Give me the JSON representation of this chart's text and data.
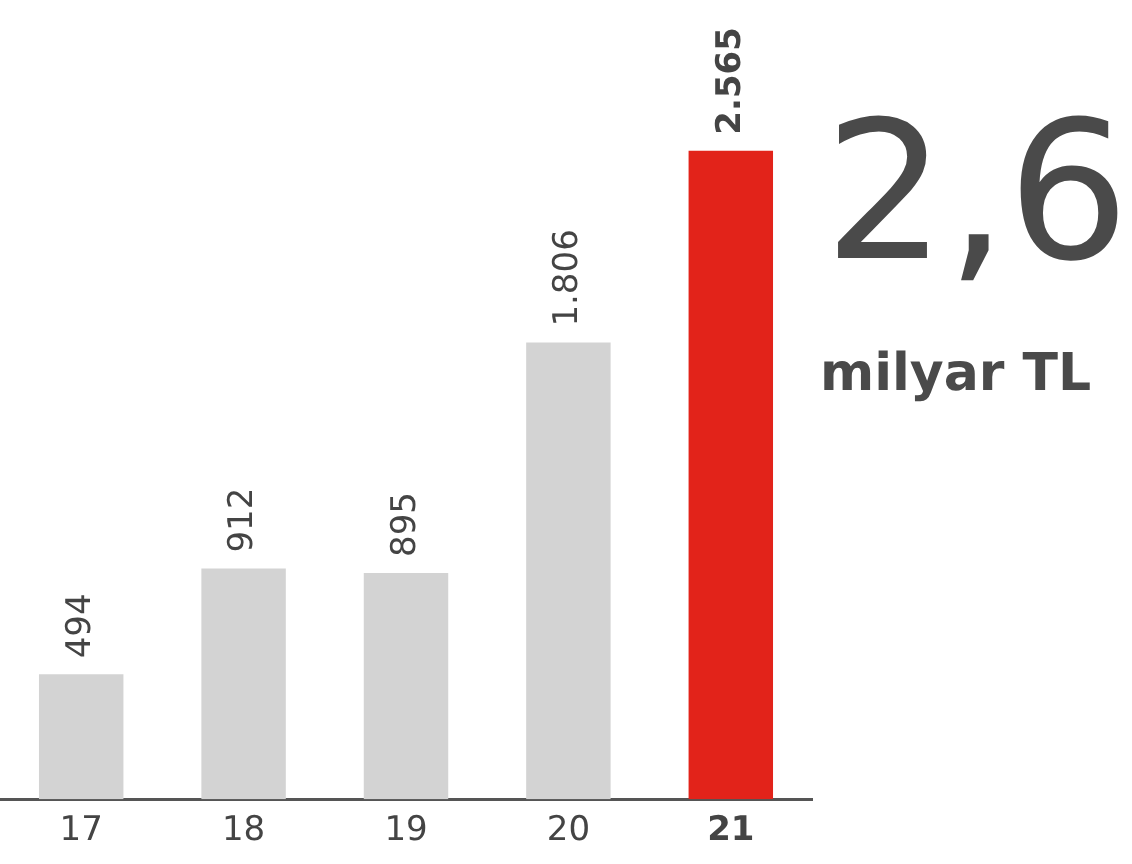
{
  "chart_data": {
    "type": "bar",
    "categories": [
      "17",
      "18",
      "19",
      "20",
      "21"
    ],
    "values": [
      494,
      912,
      895,
      1806,
      2565
    ],
    "colors": [
      "#d3d3d3",
      "#d3d3d3",
      "#d3d3d3",
      "#d3d3d3",
      "#e2231a"
    ],
    "value_labels": [
      "494",
      "912",
      "895",
      "1.806",
      "2.565"
    ],
    "grid": false,
    "legend": false,
    "annotations": [
      "2,6",
      "milyar TL"
    ]
  }
}
